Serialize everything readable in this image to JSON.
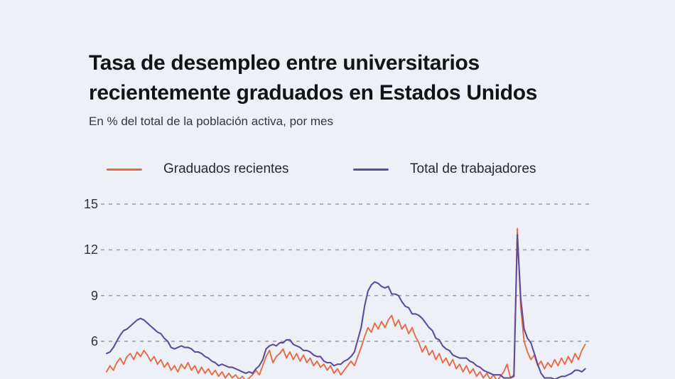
{
  "header": {
    "title_lines": [
      "Tasa de desempleo entre universitarios",
      "recientemente graduados en Estados Unidos"
    ],
    "subtitle": "En % del total de la población activa, por mes"
  },
  "legend": {
    "items": [
      {
        "label": "Graduados recientes"
      },
      {
        "label": "Total de trabajadores"
      }
    ]
  },
  "axis": {
    "tick_labels": [
      "15",
      "12",
      "9",
      "6"
    ]
  },
  "chart_data": {
    "type": "line",
    "title": "Tasa de desempleo entre universitarios recientemente graduados en Estados Unidos",
    "subtitle": "En % del total de la población activa, por mes",
    "unit": "%",
    "grid": "horizontal-dashed",
    "grid_color": "#979ea6",
    "background_color": "#edf1f7",
    "legend_position": "top",
    "yticks": [
      15,
      12,
      9,
      6
    ],
    "ylim_visible": [
      3.4,
      16
    ],
    "x": {
      "start_year": 1990,
      "interval_years": 0.25,
      "end_year": 2025.25
    },
    "series": [
      {
        "name": "Graduados recientes",
        "color": "#e86a43",
        "stroke_width": 1.9,
        "values": [
          4.0,
          4.4,
          4.1,
          4.6,
          4.9,
          4.5,
          5.0,
          5.2,
          4.8,
          5.3,
          5.0,
          5.4,
          5.1,
          4.7,
          5.0,
          4.5,
          4.8,
          4.3,
          4.6,
          4.1,
          4.4,
          4.0,
          4.5,
          4.2,
          4.6,
          4.1,
          4.4,
          3.9,
          4.3,
          3.9,
          4.2,
          3.8,
          4.1,
          3.7,
          4.0,
          3.6,
          3.9,
          3.6,
          3.8,
          3.5,
          3.7,
          3.4,
          3.6,
          3.8,
          4.1,
          3.8,
          4.4,
          5.0,
          5.4,
          4.6,
          5.0,
          5.2,
          5.5,
          4.9,
          5.3,
          4.8,
          5.2,
          4.7,
          5.1,
          4.6,
          4.9,
          4.4,
          4.7,
          4.3,
          4.5,
          4.1,
          4.4,
          3.9,
          4.2,
          3.8,
          4.1,
          4.4,
          4.7,
          4.4,
          5.0,
          5.6,
          6.3,
          6.9,
          6.6,
          7.2,
          6.8,
          7.3,
          6.9,
          7.4,
          7.7,
          7.0,
          7.4,
          6.8,
          7.1,
          6.5,
          6.9,
          6.3,
          5.9,
          5.3,
          5.7,
          5.1,
          5.4,
          4.8,
          5.2,
          4.6,
          4.9,
          4.4,
          4.8,
          4.2,
          4.5,
          4.0,
          4.4,
          3.9,
          4.2,
          3.7,
          4.0,
          3.6,
          3.9,
          3.5,
          3.8,
          3.4,
          3.7,
          4.0,
          4.5,
          3.6,
          3.8,
          13.4,
          8.2,
          6.0,
          5.3,
          4.8,
          5.1,
          4.4,
          4.7,
          4.2,
          4.6,
          4.3,
          4.8,
          4.4,
          4.9,
          4.5,
          5.0,
          4.6,
          5.2,
          4.8,
          5.4,
          5.8
        ]
      },
      {
        "name": "Total de trabajadores",
        "color": "#5e4b9e",
        "stroke_width": 2.1,
        "values": [
          5.2,
          5.3,
          5.6,
          6.0,
          6.4,
          6.7,
          6.8,
          7.0,
          7.2,
          7.4,
          7.5,
          7.4,
          7.2,
          7.0,
          6.8,
          6.6,
          6.5,
          6.2,
          6.0,
          5.6,
          5.5,
          5.6,
          5.7,
          5.6,
          5.6,
          5.5,
          5.3,
          5.3,
          5.2,
          5.0,
          4.9,
          4.7,
          4.6,
          4.4,
          4.5,
          4.4,
          4.3,
          4.3,
          4.2,
          4.1,
          4.0,
          3.9,
          4.0,
          3.9,
          4.2,
          4.4,
          4.8,
          5.5,
          5.7,
          5.8,
          5.7,
          5.9,
          5.9,
          6.1,
          6.1,
          5.8,
          5.7,
          5.6,
          5.4,
          5.4,
          5.3,
          5.1,
          5.0,
          5.0,
          4.7,
          4.6,
          4.6,
          4.4,
          4.5,
          4.5,
          4.7,
          4.8,
          5.0,
          5.3,
          6.1,
          6.9,
          8.3,
          9.3,
          9.7,
          9.9,
          9.8,
          9.6,
          9.5,
          9.6,
          9.1,
          9.1,
          9.0,
          8.6,
          8.3,
          8.2,
          7.8,
          7.8,
          7.7,
          7.5,
          7.2,
          6.9,
          6.7,
          6.2,
          6.1,
          5.7,
          5.5,
          5.4,
          5.1,
          5.0,
          4.9,
          4.9,
          4.9,
          4.7,
          4.6,
          4.4,
          4.3,
          4.1,
          4.0,
          3.9,
          3.8,
          3.8,
          3.8,
          3.6,
          3.6,
          3.6,
          3.7,
          13.0,
          8.8,
          6.8,
          6.2,
          5.9,
          5.2,
          4.5,
          3.9,
          3.6,
          3.6,
          3.6,
          3.5,
          3.6,
          3.7,
          3.7,
          3.8,
          3.9,
          4.1,
          4.1,
          4.0,
          4.2
        ]
      }
    ]
  }
}
